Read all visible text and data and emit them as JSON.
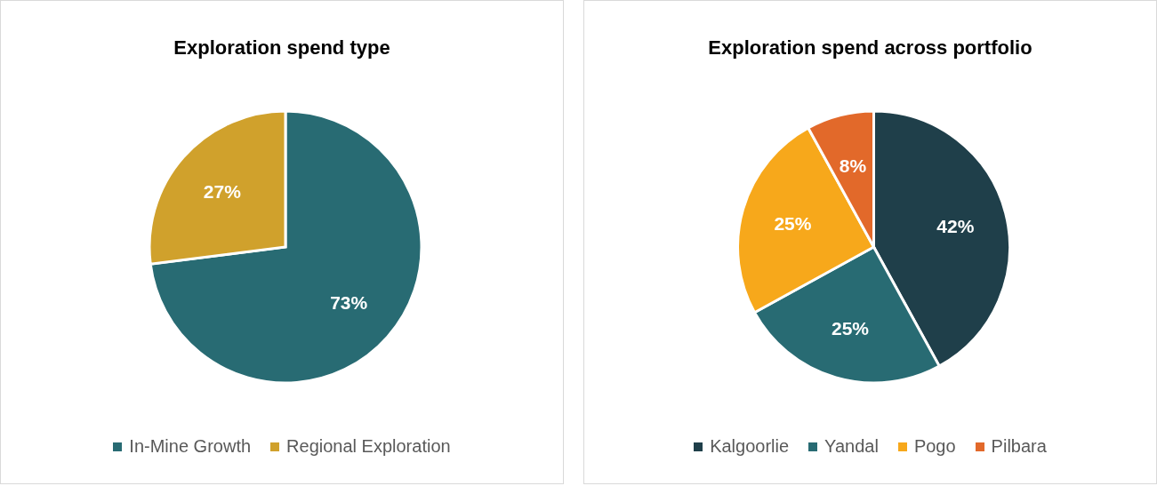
{
  "chart_data": [
    {
      "type": "pie",
      "title": "Exploration spend type",
      "categories": [
        "In-Mine Growth",
        "Regional Exploration"
      ],
      "values": [
        73,
        27
      ],
      "colors": [
        "#286b73",
        "#d0a12c"
      ],
      "value_labels": [
        "73%",
        "27%"
      ],
      "legend": "bottom"
    },
    {
      "type": "pie",
      "title": "Exploration spend across portfolio",
      "categories": [
        "Kalgoorlie",
        "Yandal",
        "Pogo",
        "Pilbara"
      ],
      "values": [
        42,
        25,
        25,
        8
      ],
      "colors": [
        "#1f3f4a",
        "#286b73",
        "#f7a81b",
        "#e2692a"
      ],
      "value_labels": [
        "42%",
        "25%",
        "25%",
        "8%"
      ],
      "legend": "bottom"
    }
  ]
}
